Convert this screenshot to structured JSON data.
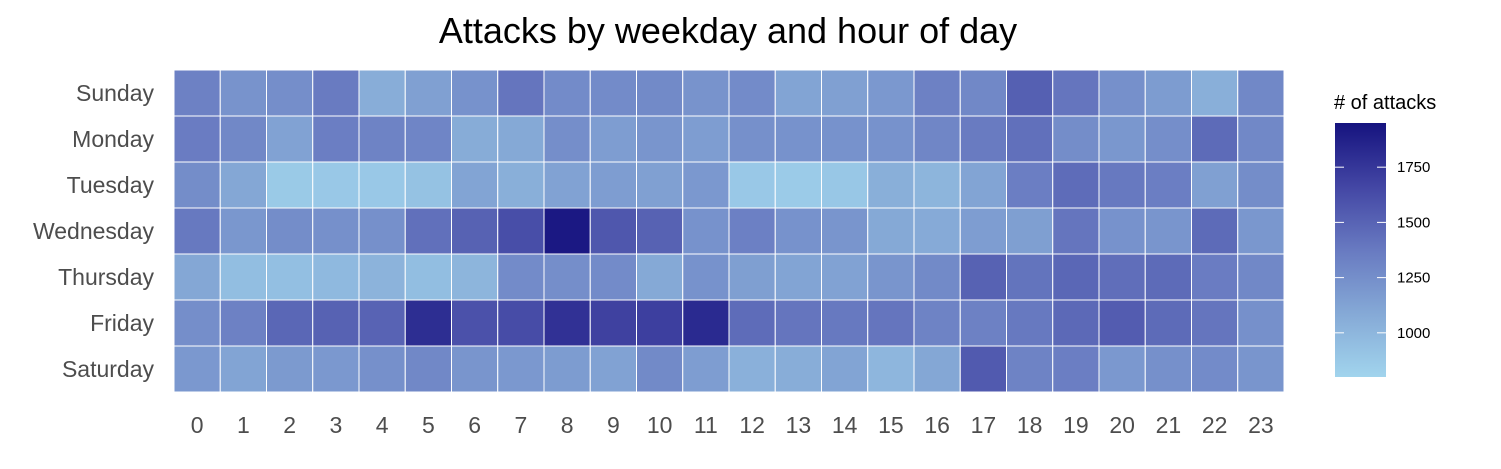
{
  "chart_data": {
    "type": "heatmap",
    "title": "Attacks by weekday and hour of day",
    "xlabel": "",
    "ylabel": "",
    "x": [
      "0",
      "1",
      "2",
      "3",
      "4",
      "5",
      "6",
      "7",
      "8",
      "9",
      "10",
      "11",
      "12",
      "13",
      "14",
      "15",
      "16",
      "17",
      "18",
      "19",
      "20",
      "21",
      "22",
      "23"
    ],
    "y": [
      "Sunday",
      "Monday",
      "Tuesday",
      "Wednesday",
      "Thursday",
      "Friday",
      "Saturday"
    ],
    "values": [
      [
        1330,
        1220,
        1250,
        1370,
        1060,
        1140,
        1230,
        1400,
        1270,
        1270,
        1280,
        1220,
        1270,
        1120,
        1140,
        1190,
        1330,
        1290,
        1520,
        1400,
        1240,
        1170,
        1050,
        1290
      ],
      [
        1360,
        1290,
        1130,
        1350,
        1320,
        1310,
        1070,
        1090,
        1250,
        1160,
        1210,
        1160,
        1240,
        1230,
        1230,
        1230,
        1300,
        1370,
        1430,
        1260,
        1200,
        1250,
        1460,
        1290
      ],
      [
        1260,
        1100,
        870,
        880,
        880,
        920,
        1120,
        1050,
        1130,
        1160,
        1140,
        1190,
        880,
        860,
        890,
        1050,
        1010,
        1120,
        1350,
        1450,
        1380,
        1350,
        1140,
        1260
      ],
      [
        1380,
        1200,
        1260,
        1240,
        1240,
        1430,
        1510,
        1620,
        1920,
        1570,
        1510,
        1230,
        1340,
        1230,
        1210,
        1090,
        1080,
        1160,
        1150,
        1400,
        1230,
        1210,
        1460,
        1200
      ],
      [
        1100,
        950,
        940,
        980,
        1020,
        950,
        1010,
        1270,
        1250,
        1270,
        1090,
        1230,
        1150,
        1120,
        1130,
        1210,
        1280,
        1510,
        1410,
        1480,
        1440,
        1460,
        1360,
        1290
      ],
      [
        1250,
        1330,
        1480,
        1510,
        1500,
        1800,
        1600,
        1630,
        1780,
        1690,
        1700,
        1820,
        1450,
        1400,
        1380,
        1400,
        1320,
        1330,
        1380,
        1470,
        1540,
        1460,
        1400,
        1240
      ],
      [
        1190,
        1120,
        1180,
        1190,
        1240,
        1290,
        1210,
        1190,
        1170,
        1130,
        1280,
        1160,
        1040,
        1060,
        1120,
        1000,
        1100,
        1550,
        1320,
        1350,
        1190,
        1240,
        1270,
        1210
      ]
    ],
    "colorbar": {
      "title": "# of attacks",
      "ticks": [
        1000,
        1250,
        1500,
        1750
      ],
      "range": [
        800,
        1950
      ],
      "low_color": "#a1d4ed",
      "high_color": "#16137f"
    },
    "grid": false,
    "legend_position": "right"
  }
}
